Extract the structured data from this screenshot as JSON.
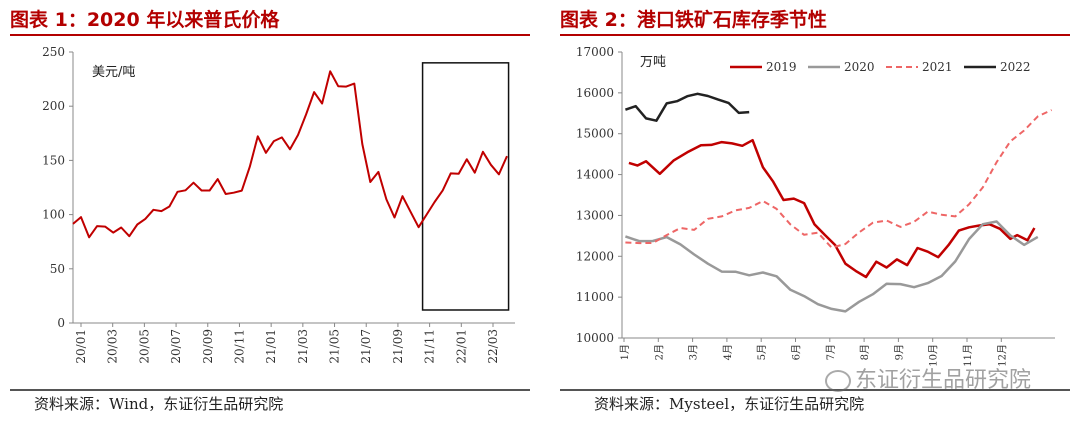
{
  "left_title": "图表 1：2020 年以来普氏价格",
  "left_source": "资料来源：Wind，东证衍生品研究院",
  "right_title": "图表 2：港口铁矿石库存季节性",
  "right_source": "资料来源：Mysteel，东证衍生品研究院",
  "watermark": "东证衍生品研究院",
  "colors": {
    "title_red": "#b30000",
    "line_red": "#c00000",
    "gray": "#999999",
    "pink": "#ee6666",
    "black": "#222222"
  },
  "chart_data": [
    {
      "type": "line",
      "title": "2020 年以来普氏价格",
      "unit_label": "美元/吨",
      "ylim": [
        0,
        250
      ],
      "yticks": [
        0,
        50,
        100,
        150,
        200,
        250
      ],
      "x_tick_labels": [
        "20/01",
        "20/03",
        "20/05",
        "20/07",
        "20/09",
        "20/11",
        "21/01",
        "21/03",
        "21/05",
        "21/07",
        "21/09",
        "21/11",
        "22/01",
        "22/03"
      ],
      "highlight_box": {
        "x_from": 21.75,
        "x_to": 27.1,
        "y_from": 12,
        "y_to": 240
      },
      "series": [
        {
          "color": "#c00000",
          "x": [
            0,
            0.5,
            1,
            1.5,
            2,
            2.5,
            3,
            3.5,
            4,
            4.5,
            5,
            5.5,
            6,
            6.5,
            7,
            7.5,
            8,
            8.5,
            9,
            9.5,
            10,
            10.5,
            11,
            11.5,
            12,
            12.5,
            13,
            13.5,
            14,
            14.5,
            15,
            15.5,
            16,
            16.5,
            17,
            17.5,
            18,
            18.5,
            19,
            19.5,
            20,
            20.5,
            21,
            21.5,
            22,
            22.5,
            23,
            23.5,
            24,
            24.5,
            25,
            25.5,
            26,
            26.5,
            27
          ],
          "y": [
            93,
            95,
            82,
            87,
            90,
            84,
            86,
            83,
            88,
            98,
            104,
            102,
            110,
            118,
            125,
            128,
            122,
            124,
            130,
            122,
            118,
            123,
            145,
            170,
            160,
            165,
            173,
            160,
            172,
            195,
            210,
            205,
            231,
            218,
            220,
            218,
            168,
            128,
            140,
            115,
            95,
            120,
            100,
            90,
            100,
            110,
            125,
            135,
            140,
            150,
            138,
            160,
            143,
            140,
            152
          ]
        }
      ]
    },
    {
      "type": "line",
      "title": "港口铁矿石库存季节性",
      "unit_label": "万吨",
      "ylim": [
        10000,
        17000
      ],
      "yticks": [
        10000,
        11000,
        12000,
        13000,
        14000,
        15000,
        16000,
        17000
      ],
      "x_tick_labels": [
        "1月",
        "2月",
        "3月",
        "4月",
        "5月",
        "6月",
        "7月",
        "8月",
        "9月",
        "10月",
        "11月",
        "12月"
      ],
      "legend_position": "top",
      "series": [
        {
          "name": "2019",
          "color": "#c00000",
          "dash": "none",
          "width": 2.5,
          "x": [
            0.2,
            0.45,
            0.7,
            1.1,
            1.5,
            1.9,
            2.3,
            2.6,
            2.9,
            3.2,
            3.5,
            3.8,
            4.1,
            4.4,
            4.7,
            5.0,
            5.3,
            5.6,
            5.9,
            6.2,
            6.5,
            6.8,
            7.1,
            7.4,
            7.7,
            8.0,
            8.3,
            8.6,
            8.9,
            9.2,
            9.5,
            9.8,
            10.1,
            10.4,
            10.7,
            11.0,
            11.3,
            11.5,
            11.8,
            12.0
          ],
          "y": [
            14300,
            14200,
            14350,
            14000,
            14350,
            14550,
            14700,
            14750,
            14770,
            14780,
            14700,
            14830,
            14200,
            13800,
            13400,
            13400,
            13300,
            12800,
            12500,
            12300,
            11800,
            11650,
            11500,
            11850,
            11750,
            11900,
            11800,
            12200,
            12100,
            12000,
            12250,
            12650,
            12700,
            12750,
            12800,
            12650,
            12450,
            12500,
            12400,
            12700
          ]
        },
        {
          "name": "2020",
          "color": "#999999",
          "dash": "none",
          "width": 2.5,
          "x": [
            0.1,
            0.5,
            0.9,
            1.3,
            1.7,
            2.1,
            2.5,
            2.9,
            3.3,
            3.7,
            4.1,
            4.5,
            4.9,
            5.3,
            5.7,
            6.1,
            6.5,
            6.9,
            7.3,
            7.7,
            8.1,
            8.5,
            8.9,
            9.3,
            9.7,
            10.1,
            10.5,
            10.9,
            11.3,
            11.7,
            12.1
          ],
          "y": [
            12500,
            12350,
            12400,
            12450,
            12300,
            12050,
            11800,
            11650,
            11600,
            11550,
            11600,
            11500,
            11200,
            11000,
            10850,
            10700,
            10650,
            10900,
            11050,
            11350,
            11300,
            11250,
            11350,
            11500,
            11900,
            12400,
            12800,
            12850,
            12500,
            12300,
            12450
          ]
        },
        {
          "name": "2021",
          "color": "#ee6666",
          "dash": "6,4",
          "width": 2,
          "x": [
            0.1,
            0.5,
            0.9,
            1.3,
            1.7,
            2.1,
            2.5,
            2.9,
            3.3,
            3.7,
            4.1,
            4.5,
            4.9,
            5.3,
            5.7,
            6.1,
            6.5,
            6.9,
            7.3,
            7.7,
            8.1,
            8.5,
            8.9,
            9.3,
            9.7,
            10.1,
            10.5,
            10.9,
            11.3,
            11.7,
            12.1,
            12.5
          ],
          "y": [
            12350,
            12300,
            12350,
            12500,
            12700,
            12650,
            12900,
            13000,
            13100,
            13200,
            13350,
            13150,
            12800,
            12500,
            12600,
            12200,
            12300,
            12600,
            12800,
            12900,
            12700,
            12850,
            13100,
            13000,
            13000,
            13250,
            13700,
            14300,
            14800,
            15100,
            15400,
            15600
          ]
        },
        {
          "name": "2022",
          "color": "#222222",
          "dash": "none",
          "width": 2.5,
          "x": [
            0.1,
            0.4,
            0.7,
            1.0,
            1.3,
            1.6,
            1.9,
            2.2,
            2.5,
            2.8,
            3.1,
            3.4,
            3.7
          ],
          "y": [
            15600,
            15650,
            15400,
            15300,
            15750,
            15800,
            15900,
            16000,
            15900,
            15850,
            15750,
            15500,
            15550
          ]
        }
      ]
    }
  ]
}
